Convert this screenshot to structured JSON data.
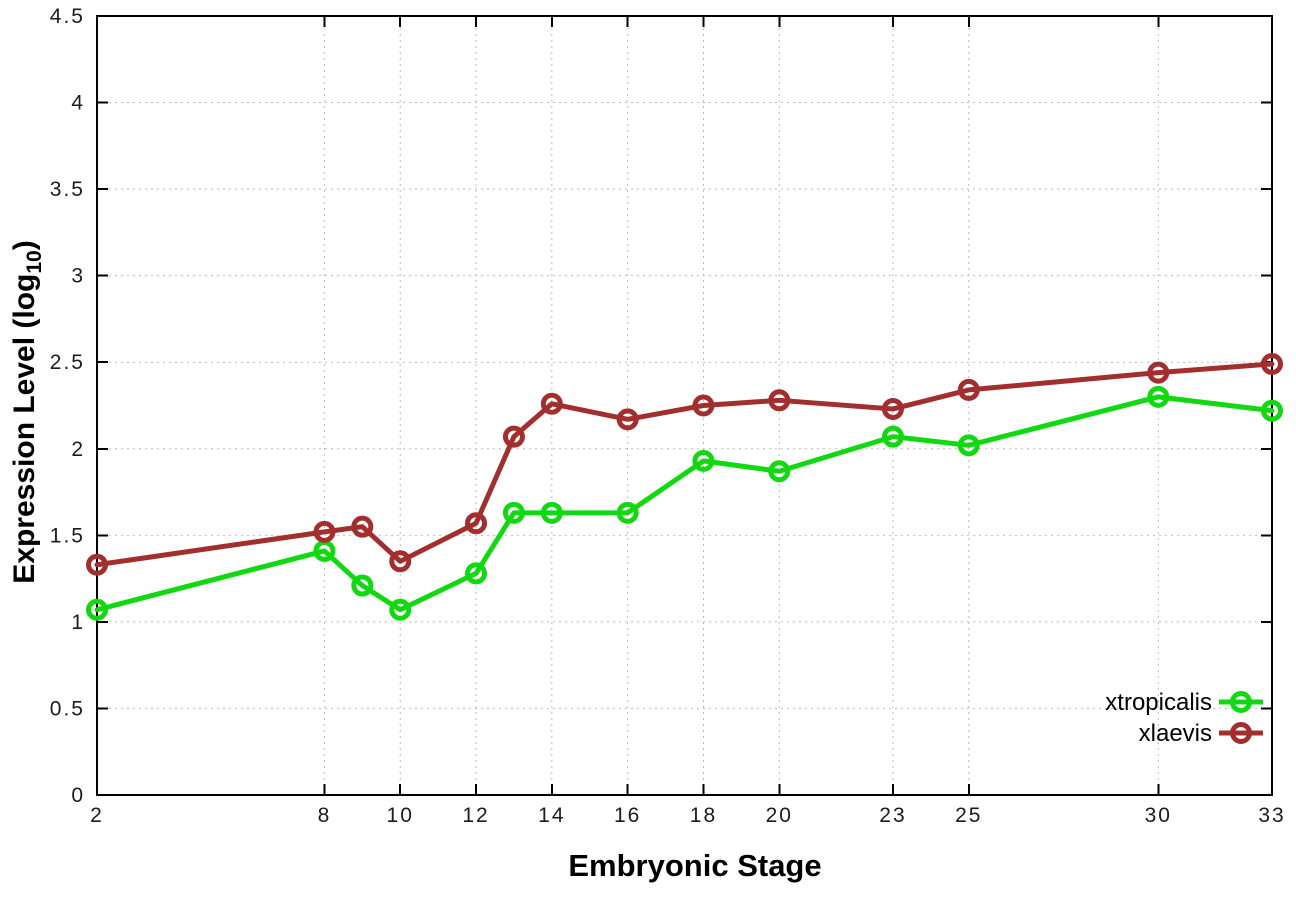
{
  "figure": {
    "background": "#ffffff",
    "ylabel_parts": {
      "pre": "Expression Level (log",
      "sub": "10",
      "post": ")"
    }
  },
  "chart_data": {
    "type": "line",
    "title": "",
    "xlabel": "Embryonic Stage",
    "ylabel": "Expression Level (log10)",
    "xlim": [
      2,
      33
    ],
    "ylim": [
      0,
      4.5
    ],
    "grid": true,
    "legend_position": "inside-bottom-right",
    "marker": "open-circle",
    "x": [
      2,
      8,
      9,
      10,
      12,
      13,
      14,
      16,
      18,
      20,
      23,
      25,
      30,
      33
    ],
    "xtick_values": [
      2,
      8,
      10,
      12,
      14,
      16,
      18,
      20,
      23,
      25,
      30,
      33
    ],
    "xtick_labels": [
      "2",
      "8",
      "10",
      "12",
      "14",
      "16",
      "18",
      "20",
      "23",
      "25",
      "30",
      "33"
    ],
    "ytick_values": [
      0,
      0.5,
      1,
      1.5,
      2,
      2.5,
      3,
      3.5,
      4,
      4.5
    ],
    "ytick_labels": [
      "0",
      "0.5",
      "1",
      "1.5",
      "2",
      "2.5",
      "3",
      "3.5",
      "4",
      "4.5"
    ],
    "series": [
      {
        "name": "xtropicalis",
        "color": "#12d812",
        "values": [
          1.07,
          1.41,
          1.21,
          1.07,
          1.28,
          1.63,
          1.63,
          1.63,
          1.93,
          1.87,
          2.07,
          2.02,
          2.3,
          2.22
        ]
      },
      {
        "name": "xlaevis",
        "color": "#a32e2e",
        "values": [
          1.33,
          1.52,
          1.55,
          1.35,
          1.57,
          2.07,
          2.26,
          2.17,
          2.25,
          2.28,
          2.23,
          2.34,
          2.44,
          2.49
        ]
      }
    ],
    "colors": {
      "grid": "#bcbcbc",
      "axis": "#000000",
      "tick_text": "#1c1c1c"
    }
  }
}
